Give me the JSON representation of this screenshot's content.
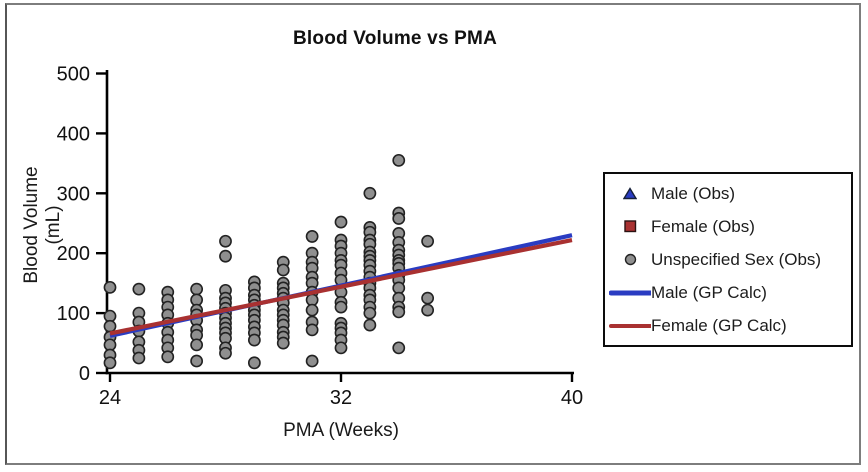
{
  "figure": {
    "title": "Blood Volume vs PMA",
    "frame_color": "#7d7d7d",
    "background": "#ffffff"
  },
  "axes": {
    "x": {
      "label": "PMA (Weeks)",
      "min": 24,
      "max": 40,
      "ticks": [
        24,
        32,
        40
      ]
    },
    "y": {
      "label": "Blood Volume (mL)",
      "min": 0,
      "max": 500,
      "ticks": [
        0,
        100,
        200,
        300,
        400,
        500
      ]
    }
  },
  "colors": {
    "male_blue": "#2a3cc2",
    "female_red": "#a93131",
    "unspecified_gray": "#8f8f8f",
    "marker_edge": "#222222",
    "axis_black": "#000000"
  },
  "legend": {
    "items": [
      {
        "label": "Male (Obs)",
        "marker": "triangle",
        "color": "#2a3cc2"
      },
      {
        "label": "Female (Obs)",
        "marker": "square",
        "color": "#a93131"
      },
      {
        "label": "Unspecified Sex (Obs)",
        "marker": "circle",
        "color": "#8f8f8f"
      },
      {
        "label": "Male (GP Calc)",
        "marker": "line",
        "color": "#2a3cc2"
      },
      {
        "label": "Female (GP Calc)",
        "marker": "line",
        "color": "#a93131"
      }
    ]
  },
  "chart_data": {
    "type": "scatter",
    "title": "Blood Volume vs PMA",
    "xlabel": "PMA (Weeks)",
    "ylabel": "Blood Volume (mL)",
    "xlim": [
      24,
      40
    ],
    "ylim": [
      0,
      500
    ],
    "x_ticks": [
      24,
      32,
      40
    ],
    "y_ticks": [
      0,
      100,
      200,
      300,
      400,
      500
    ],
    "grid": false,
    "legend_position": "right-outside",
    "series": [
      {
        "name": "Male (Obs)",
        "type": "scatter",
        "marker": "triangle",
        "color": "#2a3cc2",
        "points": []
      },
      {
        "name": "Female (Obs)",
        "type": "scatter",
        "marker": "square",
        "color": "#a93131",
        "points": []
      },
      {
        "name": "Unspecified Sex (Obs)",
        "type": "scatter",
        "marker": "circle",
        "color": "#8f8f8f",
        "points": [
          [
            24,
            143
          ],
          [
            24,
            95
          ],
          [
            24,
            78
          ],
          [
            24,
            60
          ],
          [
            24,
            47
          ],
          [
            24,
            30
          ],
          [
            24,
            17
          ],
          [
            25,
            140
          ],
          [
            25,
            100
          ],
          [
            25,
            85
          ],
          [
            25,
            70
          ],
          [
            25,
            52
          ],
          [
            25,
            38
          ],
          [
            25,
            25
          ],
          [
            26,
            135
          ],
          [
            26,
            122
          ],
          [
            26,
            110
          ],
          [
            26,
            97
          ],
          [
            26,
            83
          ],
          [
            26,
            68
          ],
          [
            26,
            55
          ],
          [
            26,
            42
          ],
          [
            26,
            27
          ],
          [
            27,
            140
          ],
          [
            27,
            122
          ],
          [
            27,
            105
          ],
          [
            27,
            97
          ],
          [
            27,
            88
          ],
          [
            27,
            72
          ],
          [
            27,
            63
          ],
          [
            27,
            47
          ],
          [
            27,
            20
          ],
          [
            28,
            220
          ],
          [
            28,
            195
          ],
          [
            28,
            138
          ],
          [
            28,
            125
          ],
          [
            28,
            117
          ],
          [
            28,
            108
          ],
          [
            28,
            100
          ],
          [
            28,
            92
          ],
          [
            28,
            83
          ],
          [
            28,
            75
          ],
          [
            28,
            67
          ],
          [
            28,
            58
          ],
          [
            28,
            42
          ],
          [
            28,
            33
          ],
          [
            29,
            152
          ],
          [
            29,
            142
          ],
          [
            29,
            130
          ],
          [
            29,
            122
          ],
          [
            29,
            113
          ],
          [
            29,
            105
          ],
          [
            29,
            97
          ],
          [
            29,
            88
          ],
          [
            29,
            77
          ],
          [
            29,
            67
          ],
          [
            29,
            55
          ],
          [
            29,
            17
          ],
          [
            30,
            185
          ],
          [
            30,
            172
          ],
          [
            30,
            150
          ],
          [
            30,
            142
          ],
          [
            30,
            133
          ],
          [
            30,
            125
          ],
          [
            30,
            117
          ],
          [
            30,
            105
          ],
          [
            30,
            97
          ],
          [
            30,
            88
          ],
          [
            30,
            80
          ],
          [
            30,
            68
          ],
          [
            30,
            60
          ],
          [
            30,
            50
          ],
          [
            31,
            228
          ],
          [
            31,
            200
          ],
          [
            31,
            185
          ],
          [
            31,
            175
          ],
          [
            31,
            160
          ],
          [
            31,
            150
          ],
          [
            31,
            135
          ],
          [
            31,
            122
          ],
          [
            31,
            105
          ],
          [
            31,
            85
          ],
          [
            31,
            72
          ],
          [
            31,
            20
          ],
          [
            32,
            252
          ],
          [
            32,
            222
          ],
          [
            32,
            212
          ],
          [
            32,
            200
          ],
          [
            32,
            188
          ],
          [
            32,
            180
          ],
          [
            32,
            167
          ],
          [
            32,
            155
          ],
          [
            32,
            135
          ],
          [
            32,
            118
          ],
          [
            32,
            110
          ],
          [
            32,
            83
          ],
          [
            32,
            75
          ],
          [
            32,
            67
          ],
          [
            32,
            55
          ],
          [
            32,
            42
          ],
          [
            33,
            300
          ],
          [
            33,
            243
          ],
          [
            33,
            235
          ],
          [
            33,
            222
          ],
          [
            33,
            215
          ],
          [
            33,
            202
          ],
          [
            33,
            195
          ],
          [
            33,
            188
          ],
          [
            33,
            180
          ],
          [
            33,
            170
          ],
          [
            33,
            160
          ],
          [
            33,
            150
          ],
          [
            33,
            142
          ],
          [
            33,
            130
          ],
          [
            33,
            122
          ],
          [
            33,
            110
          ],
          [
            33,
            100
          ],
          [
            33,
            80
          ],
          [
            34,
            355
          ],
          [
            34,
            267
          ],
          [
            34,
            258
          ],
          [
            34,
            233
          ],
          [
            34,
            218
          ],
          [
            34,
            205
          ],
          [
            34,
            197
          ],
          [
            34,
            188
          ],
          [
            34,
            183
          ],
          [
            34,
            175
          ],
          [
            34,
            163
          ],
          [
            34,
            155
          ],
          [
            34,
            142
          ],
          [
            34,
            125
          ],
          [
            34,
            110
          ],
          [
            34,
            102
          ],
          [
            34,
            42
          ],
          [
            35,
            220
          ],
          [
            35,
            125
          ],
          [
            35,
            105
          ]
        ]
      },
      {
        "name": "Male (GP Calc)",
        "type": "line",
        "color": "#2a3cc2",
        "points": [
          [
            24,
            62
          ],
          [
            40,
            230
          ]
        ]
      },
      {
        "name": "Female (GP Calc)",
        "type": "line",
        "color": "#a93131",
        "points": [
          [
            24,
            66
          ],
          [
            40,
            222
          ]
        ]
      }
    ]
  }
}
